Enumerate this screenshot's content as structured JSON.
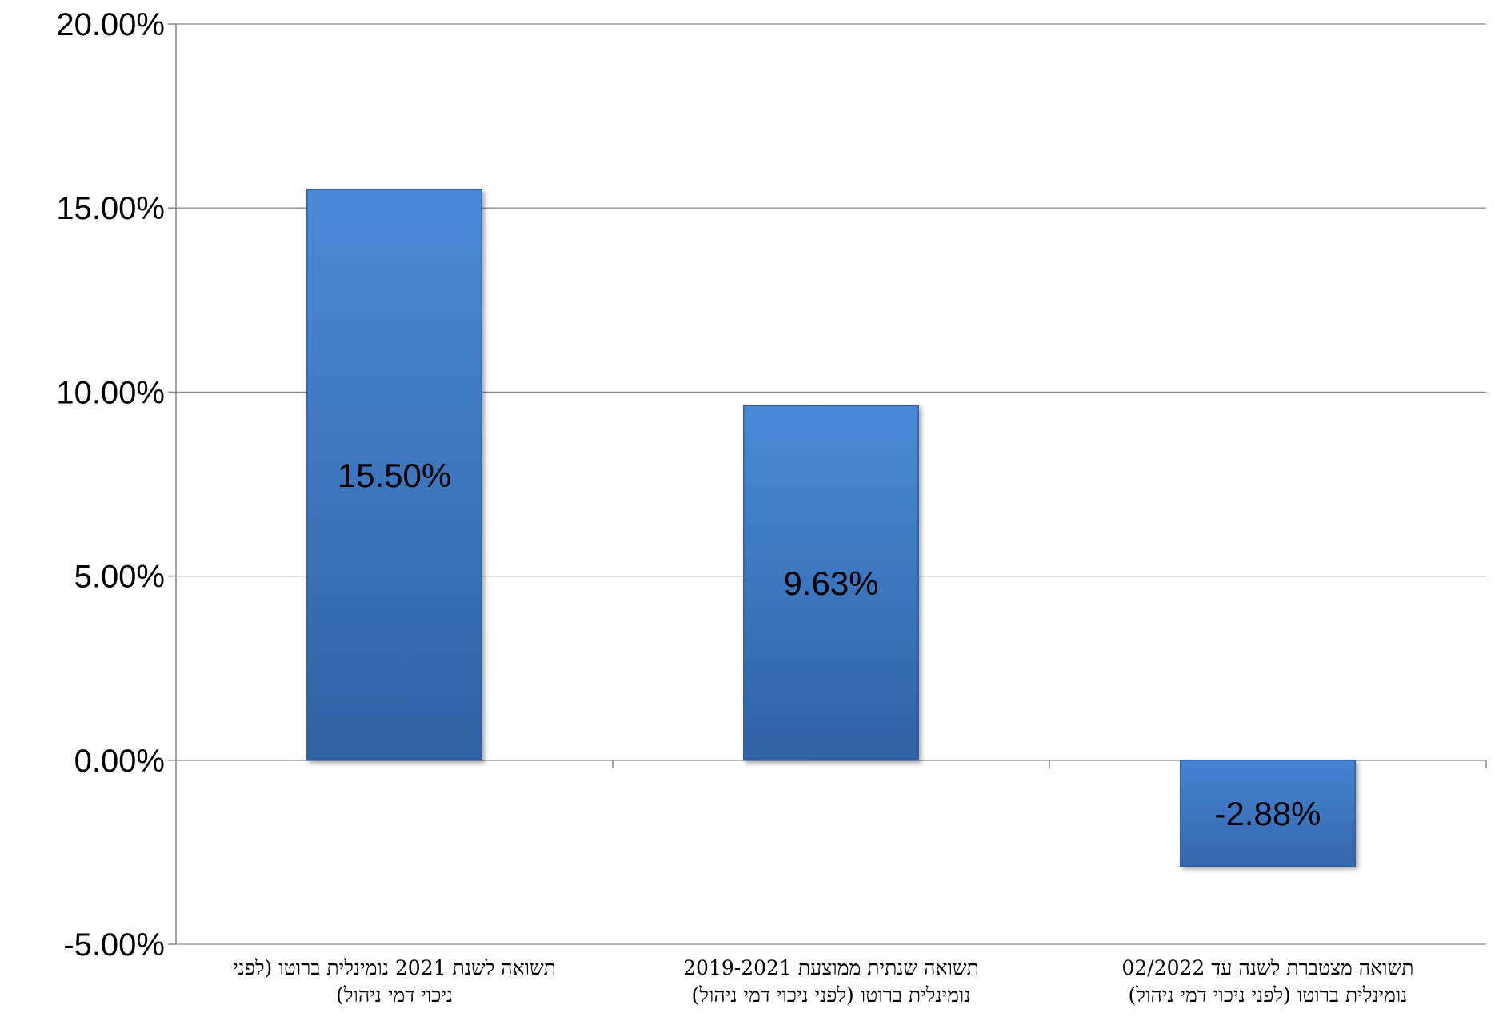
{
  "chart_data": {
    "type": "bar",
    "categories": [
      [
        "תשואה לשנת 2021 נומינלית ברוטו (לפני",
        "ניכוי דמי ניהול)"
      ],
      [
        "תשואה שנתית ממוצעת 2019-2021",
        "נומינלית ברוטו (לפני ניכוי דמי ניהול)"
      ],
      [
        "תשואה מצטברת לשנה עד 02/2022",
        "נומינלית ברוטו (לפני ניכוי דמי ניהול)"
      ]
    ],
    "values": [
      15.5,
      9.63,
      -2.88
    ],
    "data_labels": [
      "15.50%",
      "9.63%",
      "-2.88%"
    ],
    "y_ticks": [
      20,
      15,
      10,
      5,
      0,
      -5
    ],
    "y_tick_labels": [
      "20.00%",
      "15.00%",
      "10.00%",
      "5.00%",
      "0.00%",
      "-5.00%"
    ],
    "ylim": [
      -5,
      20
    ],
    "grid": true,
    "colors": {
      "bar_light": "#4a8ad8",
      "bar_dark": "#2f62a3",
      "grid": "#8c8c8c"
    }
  }
}
